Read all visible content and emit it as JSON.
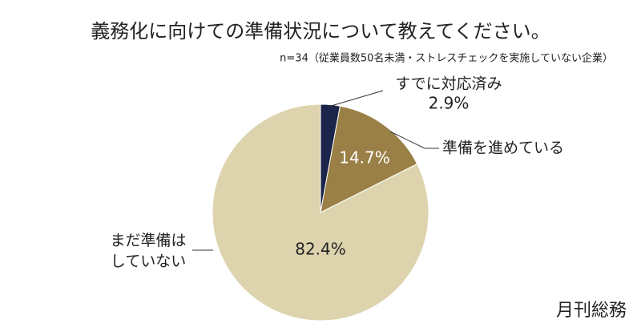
{
  "chart_data": {
    "type": "pie",
    "title": "義務化に向けての準備状況について教えてください。",
    "subtitle": "n=34（従業員数50名未満・ストレスチェックを実施していない企業）",
    "categories": [
      "すでに対応済み",
      "準備を進めている",
      "まだ準備は\nしていない"
    ],
    "values": [
      2.9,
      14.7,
      82.4
    ],
    "value_labels": [
      "2.9%",
      "14.7%",
      "82.4%"
    ],
    "colors": [
      "#1b2449",
      "#9a8046",
      "#ddd4ae"
    ],
    "brand": "月刊総務"
  }
}
